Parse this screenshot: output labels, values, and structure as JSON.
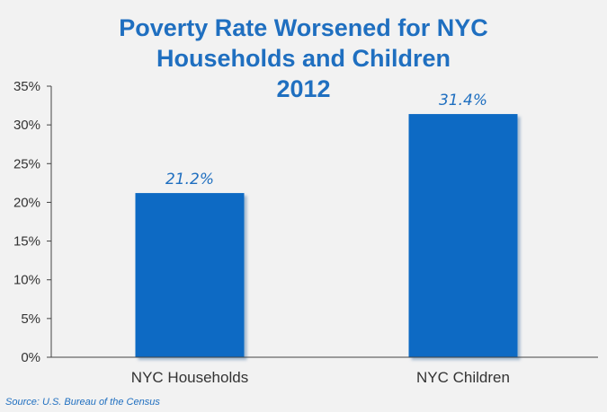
{
  "title_lines": [
    "Poverty Rate Worsened for NYC",
    "Households and Children",
    "2012"
  ],
  "source": "Source:  U.S. Bureau of the Census",
  "colors": {
    "bar": "#0a6bc4",
    "bar_shadow": "#6a8fb5",
    "title": "#1f6fc0",
    "axis": "#444444",
    "tick_text": "#333333",
    "background": "#f2f2f2"
  },
  "chart_data": {
    "type": "bar",
    "categories": [
      "NYC Households",
      "NYC Children"
    ],
    "values": [
      21.2,
      31.4
    ],
    "data_labels": [
      "21.2%",
      "31.4%"
    ],
    "title": "Poverty Rate Worsened for NYC Households and Children 2012",
    "xlabel": "",
    "ylabel": "",
    "ylim": [
      0,
      35
    ],
    "yticks": [
      0,
      5,
      10,
      15,
      20,
      25,
      30,
      35
    ],
    "ytick_labels": [
      "0%",
      "5%",
      "10%",
      "15%",
      "20%",
      "25%",
      "30%",
      "35%"
    ],
    "grid": false,
    "legend": "none"
  }
}
